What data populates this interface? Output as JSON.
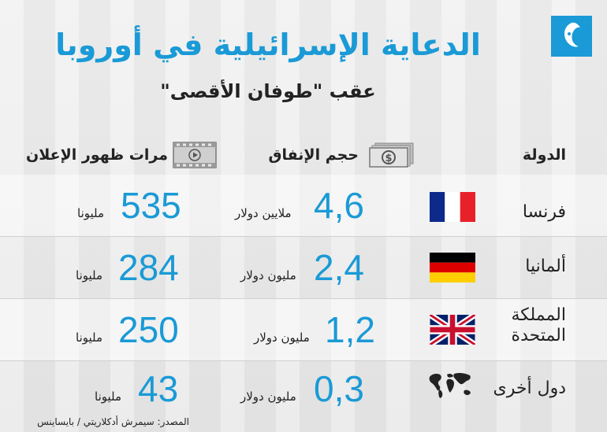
{
  "title": "الدعاية الإسرائيلية في أوروبا",
  "subtitle": "عقب \"طوفان الأقصى\"",
  "headers": {
    "country": "الدولة",
    "spending": "حجم الإنفاق",
    "impressions": "مرات ظهور الإعلان"
  },
  "rows": [
    {
      "country": "فرنسا",
      "spending": "4,6",
      "spending_unit": "ملايين دولار",
      "impressions": "535",
      "impressions_unit": "مليونا"
    },
    {
      "country": "ألمانيا",
      "spending": "2,4",
      "spending_unit": "مليون دولار",
      "impressions": "284",
      "impressions_unit": "مليونا"
    },
    {
      "country": "المملكة المتحدة",
      "spending": "1,2",
      "spending_unit": "مليون دولار",
      "impressions": "250",
      "impressions_unit": "مليونا"
    },
    {
      "country": "دول أخرى",
      "spending": "0,3",
      "spending_unit": "مليون دولار",
      "impressions": "43",
      "impressions_unit": "مليونا"
    }
  ],
  "source": "المصدر: سيمرش أدكلاريتي / بايساينس",
  "colors": {
    "accent": "#1a9ad6",
    "text": "#222222",
    "background": "#e9e9e9"
  },
  "icons": {
    "logo": "al-jazeera-logo-icon",
    "money": "money-icon",
    "video": "video-icon",
    "world": "world-map-icon"
  }
}
